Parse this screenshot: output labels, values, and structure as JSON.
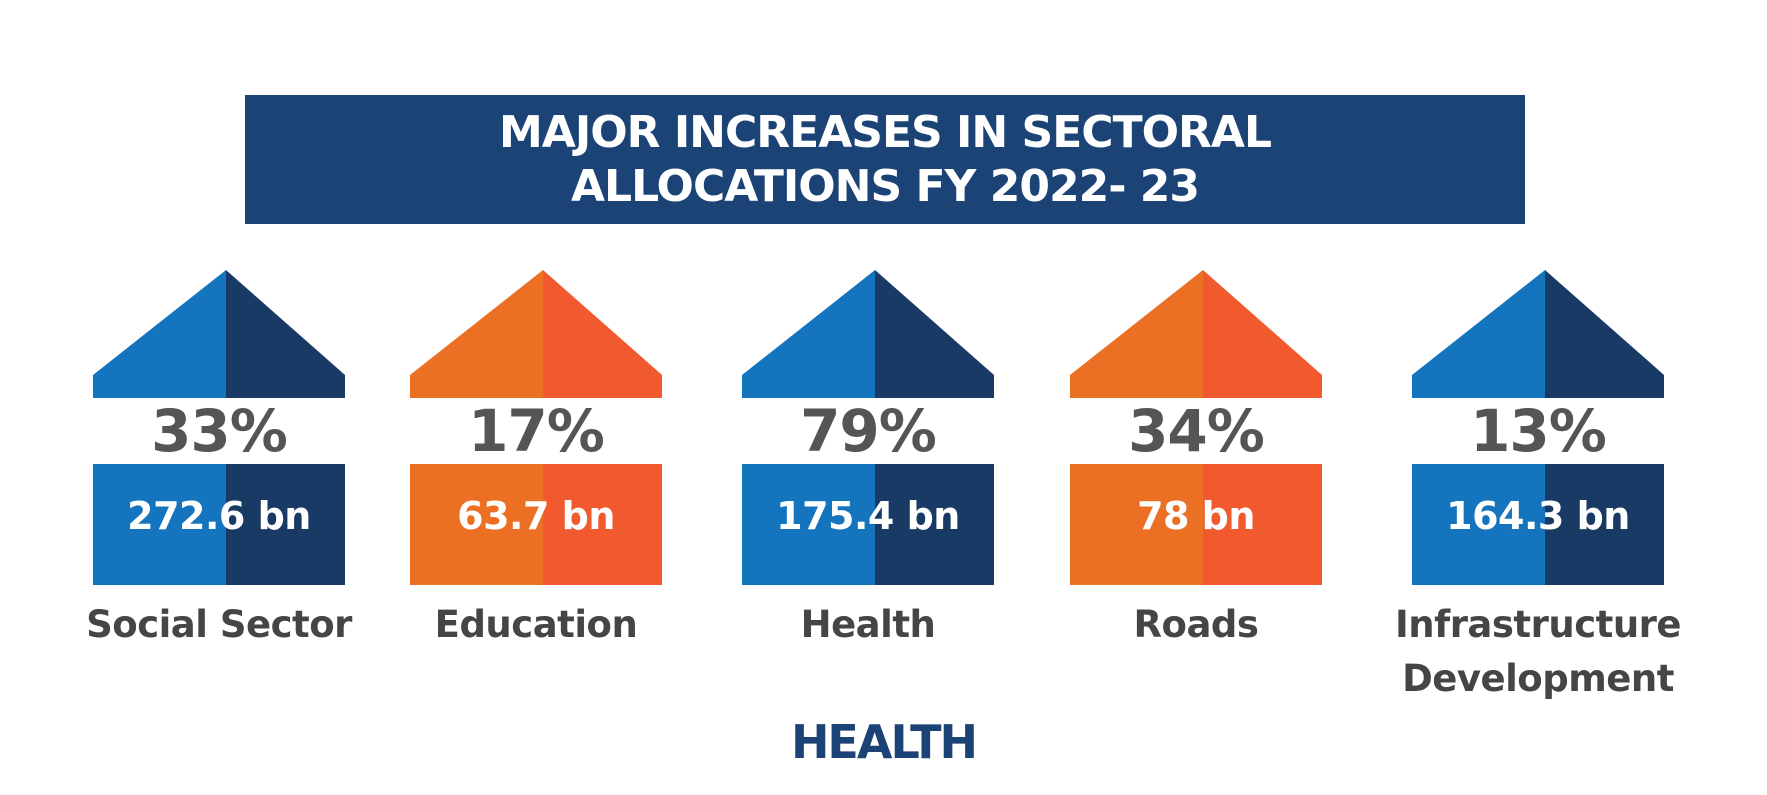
{
  "title": {
    "line1": "MAJOR INCREASES IN SECTORAL",
    "line2": "ALLOCATIONS FY 2022- 23"
  },
  "sectors": [
    {
      "label": "Social Sector",
      "percent": "33%",
      "amount": "272.6 bn",
      "theme": "blue"
    },
    {
      "label": "Education",
      "percent": "17%",
      "amount": "63.7 bn",
      "theme": "orange"
    },
    {
      "label": "Health",
      "percent": "79%",
      "amount": "175.4 bn",
      "theme": "blue"
    },
    {
      "label": "Roads",
      "percent": "34%",
      "amount": "78 bn",
      "theme": "orange"
    },
    {
      "label": "Infrastructure Development",
      "percent": "13%",
      "amount": "164.3 bn",
      "theme": "blue"
    }
  ],
  "footer": "HEALTH",
  "colors": {
    "banner": "#1b4376",
    "blue_light": "#1574be",
    "blue_dark": "#193a64",
    "orange_light": "#ec7024",
    "orange_dark": "#f15a2e",
    "text_gray": "#555555"
  }
}
